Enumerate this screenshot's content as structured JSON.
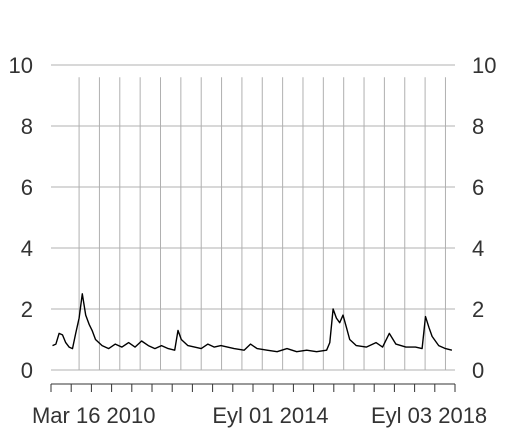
{
  "chart_data": {
    "type": "line",
    "title": "",
    "xlabel": "",
    "ylabel": "",
    "ylim": [
      0,
      10
    ],
    "y_ticks": [
      "0",
      "2",
      "4",
      "6",
      "8",
      "10"
    ],
    "y_ticks_right": [
      "0",
      "2",
      "4",
      "6",
      "8",
      "10"
    ],
    "x_ticks": [
      {
        "label": "Mar 16 2010",
        "x": "2010-03-16"
      },
      {
        "label": "Eyl 01 2014",
        "x": "2014-09-01"
      },
      {
        "label": "Eyl 03 2018",
        "x": "2018-09-03"
      }
    ],
    "grid": {
      "horizontal": true,
      "vertical": true
    },
    "legend": "none",
    "colors": {
      "line": "#000000",
      "grid": "#b0b0b0",
      "axis": "#333333",
      "text": "#333333"
    },
    "series": [
      {
        "values": [
          [
            "2009-03-01",
            0.8
          ],
          [
            "2009-04-01",
            0.85
          ],
          [
            "2009-05-01",
            1.2
          ],
          [
            "2009-06-01",
            1.15
          ],
          [
            "2009-07-01",
            0.9
          ],
          [
            "2009-08-01",
            0.75
          ],
          [
            "2009-09-01",
            0.7
          ],
          [
            "2009-10-01",
            1.2
          ],
          [
            "2009-11-01",
            1.7
          ],
          [
            "2009-12-01",
            2.5
          ],
          [
            "2010-01-01",
            1.8
          ],
          [
            "2010-02-01",
            1.5
          ],
          [
            "2010-03-01",
            1.3
          ],
          [
            "2010-04-01",
            1.0
          ],
          [
            "2010-06-01",
            0.8
          ],
          [
            "2010-08-01",
            0.7
          ],
          [
            "2010-10-01",
            0.85
          ],
          [
            "2010-12-01",
            0.75
          ],
          [
            "2011-02-01",
            0.9
          ],
          [
            "2011-04-01",
            0.75
          ],
          [
            "2011-06-01",
            0.95
          ],
          [
            "2011-08-01",
            0.8
          ],
          [
            "2011-10-01",
            0.7
          ],
          [
            "2011-12-01",
            0.8
          ],
          [
            "2012-02-01",
            0.7
          ],
          [
            "2012-04-01",
            0.65
          ],
          [
            "2012-05-01",
            1.3
          ],
          [
            "2012-06-01",
            1.0
          ],
          [
            "2012-08-01",
            0.8
          ],
          [
            "2012-10-01",
            0.75
          ],
          [
            "2012-12-01",
            0.7
          ],
          [
            "2013-02-01",
            0.85
          ],
          [
            "2013-04-01",
            0.75
          ],
          [
            "2013-06-01",
            0.8
          ],
          [
            "2013-08-01",
            0.75
          ],
          [
            "2013-10-01",
            0.7
          ],
          [
            "2014-01-01",
            0.65
          ],
          [
            "2014-03-01",
            0.85
          ],
          [
            "2014-05-01",
            0.7
          ],
          [
            "2014-08-01",
            0.65
          ],
          [
            "2014-11-01",
            0.6
          ],
          [
            "2015-02-01",
            0.7
          ],
          [
            "2015-05-01",
            0.6
          ],
          [
            "2015-08-01",
            0.65
          ],
          [
            "2015-11-01",
            0.6
          ],
          [
            "2016-02-01",
            0.65
          ],
          [
            "2016-03-01",
            0.9
          ],
          [
            "2016-04-01",
            2.0
          ],
          [
            "2016-05-01",
            1.7
          ],
          [
            "2016-06-01",
            1.55
          ],
          [
            "2016-07-01",
            1.8
          ],
          [
            "2016-08-01",
            1.4
          ],
          [
            "2016-09-01",
            1.0
          ],
          [
            "2016-11-01",
            0.8
          ],
          [
            "2017-02-01",
            0.75
          ],
          [
            "2017-05-01",
            0.9
          ],
          [
            "2017-07-01",
            0.75
          ],
          [
            "2017-09-01",
            1.2
          ],
          [
            "2017-11-01",
            0.85
          ],
          [
            "2018-02-01",
            0.75
          ],
          [
            "2018-05-01",
            0.75
          ],
          [
            "2018-07-01",
            0.7
          ],
          [
            "2018-08-01",
            1.75
          ],
          [
            "2018-09-01",
            1.4
          ],
          [
            "2018-10-01",
            1.1
          ],
          [
            "2018-12-01",
            0.8
          ],
          [
            "2019-02-01",
            0.7
          ],
          [
            "2019-04-01",
            0.65
          ]
        ]
      }
    ]
  }
}
